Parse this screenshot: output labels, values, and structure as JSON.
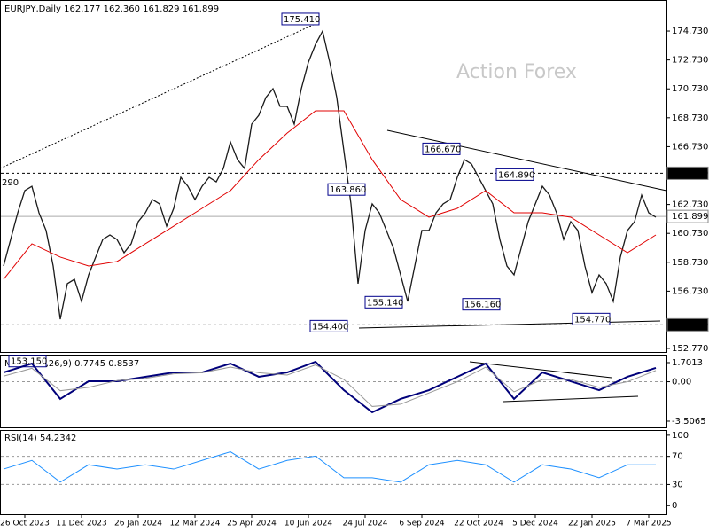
{
  "chart_data": [
    {
      "type": "ohlc-line",
      "title": "EURJPY,Daily 162.177 162.360 161.829 161.899",
      "watermark": "Action Forex",
      "categories": [
        null,
        null,
        null,
        "26 Oct 2023",
        null,
        null,
        null,
        null,
        null,
        null,
        null,
        "11 Dec 2023",
        null,
        null,
        null,
        null,
        null,
        null,
        null,
        "26 Jan 2024",
        null,
        null,
        null,
        null,
        null,
        null,
        null,
        "12 Mar 2024",
        null,
        null,
        null,
        null,
        null,
        null,
        null,
        "25 Apr 2024",
        null,
        null,
        null,
        null,
        null,
        null,
        null,
        "10 Jun 2024",
        null,
        null,
        null,
        null,
        null,
        null,
        null,
        "24 Jul 2024",
        null,
        null,
        null,
        null,
        null,
        null,
        null,
        "6 Sep 2024",
        null,
        null,
        null,
        null,
        null,
        null,
        null,
        "22 Oct 2024",
        null,
        null,
        null,
        null,
        null,
        null,
        null,
        "5 Dec 2024",
        null,
        null,
        null,
        null,
        null,
        null,
        null,
        "22 Jan 2025",
        null,
        null,
        null,
        null,
        null,
        null,
        null,
        "7 Mar 2025",
        null
      ],
      "color": "#1a1a1a",
      "values": [
        158.47,
        160.31,
        162.15,
        163.69,
        163.99,
        162.15,
        160.93,
        158.47,
        154.79,
        157.25,
        157.55,
        156.02,
        157.86,
        159.09,
        160.31,
        160.62,
        160.31,
        159.39,
        160.01,
        161.54,
        162.15,
        163.07,
        162.77,
        161.23,
        162.46,
        164.61,
        163.99,
        163.07,
        163.99,
        164.61,
        164.3,
        165.22,
        167.06,
        165.83,
        165.22,
        168.29,
        168.9,
        170.13,
        170.74,
        169.52,
        169.52,
        168.29,
        170.74,
        172.58,
        173.81,
        174.73,
        172.58,
        170.13,
        166.45,
        162.77,
        157.25,
        160.93,
        162.77,
        162.15,
        160.93,
        159.7,
        157.86,
        156.02,
        158.47,
        160.93,
        160.93,
        162.15,
        162.77,
        163.07,
        164.61,
        165.83,
        165.53,
        164.61,
        163.69,
        162.77,
        160.31,
        158.47,
        157.86,
        159.7,
        161.54,
        162.77,
        163.99,
        163.38,
        162.15,
        160.31,
        161.54,
        160.93,
        158.47,
        156.63,
        157.86,
        157.25,
        156.02,
        159.09,
        160.93,
        161.54,
        163.38,
        162.15,
        161.85
      ],
      "ma": {
        "color": "#e00000",
        "x": [
          0,
          4,
          8,
          12,
          16,
          20,
          24,
          28,
          32,
          36,
          40,
          44,
          48,
          52,
          56,
          60,
          64,
          68,
          72,
          76,
          80,
          84,
          88,
          92
        ],
        "values": [
          157.55,
          160.01,
          159.09,
          158.47,
          158.78,
          160.01,
          161.23,
          162.46,
          163.69,
          165.83,
          167.67,
          169.21,
          169.21,
          165.83,
          163.07,
          161.85,
          162.46,
          163.69,
          162.15,
          162.15,
          161.85,
          160.62,
          159.39,
          160.62
        ]
      },
      "ylim": [
        152.52,
        176.88
      ],
      "yticks": [
        {
          "value": 174.73,
          "label": "174.730"
        },
        {
          "value": 172.73,
          "label": "172.730"
        },
        {
          "value": 170.73,
          "label": "170.730"
        },
        {
          "value": 168.73,
          "label": "168.730"
        },
        {
          "value": 166.73,
          "label": "166.730"
        },
        {
          "value": 162.73,
          "label": "162.730"
        },
        {
          "value": 160.73,
          "label": "160.730"
        },
        {
          "value": 158.73,
          "label": "158.730"
        },
        {
          "value": 156.73,
          "label": "156.730"
        },
        {
          "value": 152.77,
          "label": "152.770"
        }
      ],
      "levels": [
        {
          "value": 164.89,
          "label": "164.890",
          "style": "dashed"
        },
        {
          "value": 161.899,
          "label": "161.899",
          "style": "solid"
        },
        {
          "value": 154.4,
          "label": "154.400",
          "style": "dashed"
        }
      ],
      "annotations": [
        {
          "value": 175.41,
          "label": "175.410"
        },
        {
          "value": 166.67,
          "label": "166.670"
        },
        {
          "value": 164.89,
          "label": "164.890"
        },
        {
          "value": 163.86,
          "label": "163.860"
        },
        {
          "value": 156.16,
          "label": "156.160"
        },
        {
          "value": 155.14,
          "label": "155.140"
        },
        {
          "value": 154.77,
          "label": "154.770"
        },
        {
          "value": 154.4,
          "label": "154.400"
        },
        {
          "value": 153.15,
          "label": "153.150"
        }
      ],
      "cut_label": "290"
    },
    {
      "type": "line",
      "title": "MACD(12,26,9) 0.7745 0.8537",
      "x": [
        0,
        4,
        8,
        12,
        16,
        20,
        24,
        28,
        32,
        36,
        40,
        44,
        48,
        52,
        56,
        60,
        64,
        68,
        72,
        76,
        80,
        84,
        88,
        92
      ],
      "series": [
        {
          "color": "#00007a",
          "values": [
            0.83,
            1.62,
            -1.53,
            0.04,
            0.04,
            0.44,
            0.83,
            0.83,
            1.62,
            0.44,
            0.83,
            1.78,
            -0.75,
            -2.72,
            -1.53,
            -0.75,
            0.44,
            1.62,
            -1.53,
            0.83,
            0.04,
            -0.75,
            0.44,
            1.23
          ]
        },
        {
          "color": "#999999",
          "values": [
            0.5,
            1.2,
            -0.8,
            -0.5,
            0.1,
            0.3,
            0.7,
            0.8,
            1.3,
            0.8,
            0.6,
            1.5,
            0.2,
            -2.2,
            -2.0,
            -1.0,
            0.0,
            1.3,
            -0.9,
            0.2,
            0.2,
            -0.5,
            0.0,
            1.0
          ]
        }
      ],
      "ylim": [
        -4.06,
        2.41
      ],
      "yticks": [
        1.7013,
        {
          "value": 0,
          "label": "0.00"
        },
        -3.5065
      ],
      "grid_levels": [
        0
      ]
    },
    {
      "type": "line",
      "title": "RSI(14) 54.2342",
      "x": [
        0,
        4,
        8,
        12,
        16,
        20,
        24,
        28,
        32,
        36,
        40,
        44,
        48,
        52,
        56,
        60,
        64,
        68,
        72,
        76,
        80,
        84,
        88,
        92
      ],
      "series": [
        {
          "color": "#1e90ff",
          "values": [
            51.9,
            64.2,
            33.3,
            58.0,
            51.9,
            58.0,
            51.9,
            64.2,
            76.5,
            51.9,
            64.2,
            70.4,
            39.5,
            39.5,
            33.3,
            58.0,
            64.2,
            58.0,
            33.3,
            58.0,
            51.9,
            39.5,
            58.0,
            58.0
          ]
        }
      ],
      "ylim": [
        -12.3,
        107.4
      ],
      "yticks": [
        100,
        70,
        30,
        0
      ],
      "grid_levels": [
        70,
        30
      ]
    }
  ]
}
